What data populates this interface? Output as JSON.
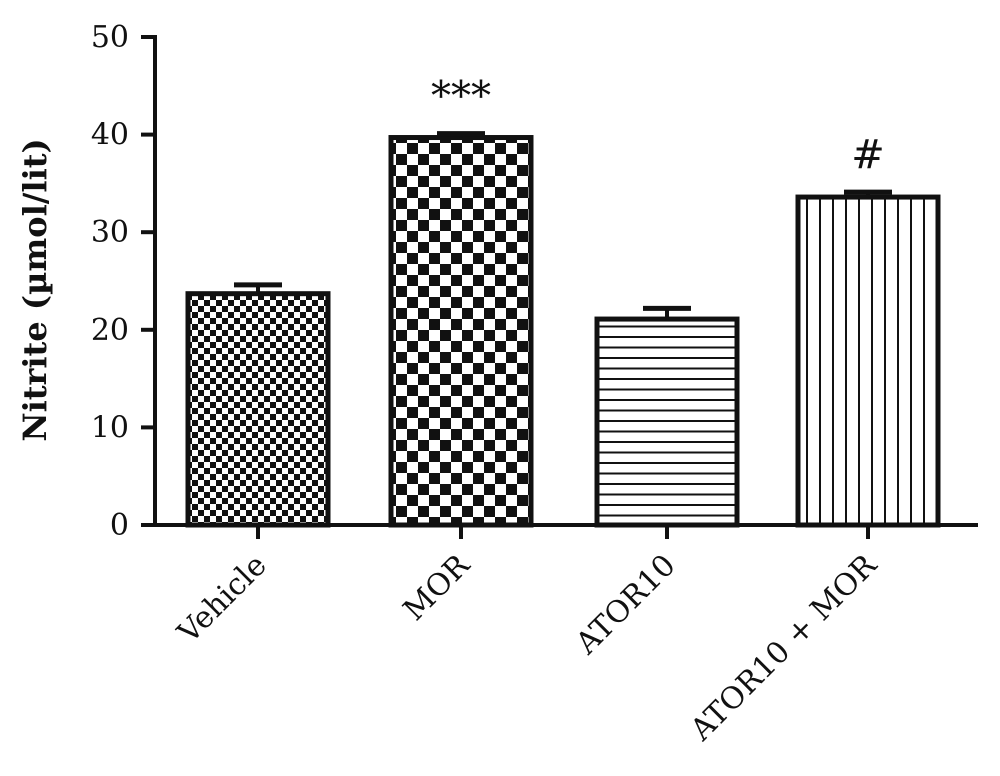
{
  "chart_data": {
    "type": "bar",
    "title": "",
    "xlabel": "",
    "ylabel": "Nitrite (µmol/lit)",
    "ylim": [
      0,
      50
    ],
    "yticks": [
      "0",
      "10",
      "20",
      "30",
      "40",
      "50"
    ],
    "categories": [
      "Vehicle",
      "MOR",
      "ATOR10",
      "ATOR10 + MOR"
    ],
    "values": [
      23.7,
      39.7,
      21.1,
      33.6
    ],
    "errors": [
      0.9,
      0.4,
      1.1,
      0.5
    ],
    "annotations": [
      "",
      "***",
      "",
      "#"
    ],
    "patterns": [
      "fine-checker",
      "coarse-checker",
      "horizontal-lines",
      "vertical-lines"
    ],
    "grid": false,
    "bar_color": "#111111"
  }
}
